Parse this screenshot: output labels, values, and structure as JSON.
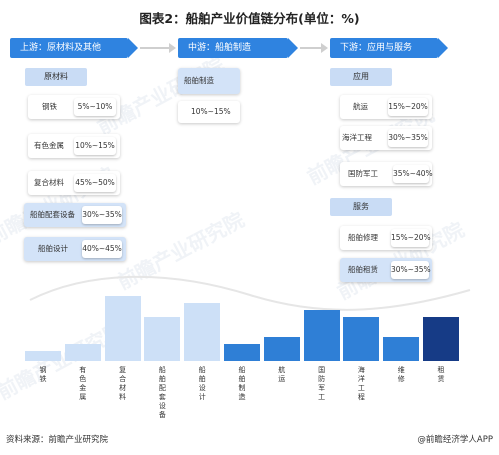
{
  "title": "图表2：船舶产业价值链分布(单位：%)",
  "stages": {
    "upstream": "上游：原材料及其他",
    "midstream": "中游：船舶制造",
    "downstream": "下游：应用与服务"
  },
  "upstream": {
    "category": "原材料",
    "items": [
      {
        "label": "钢铁",
        "pct": "5%~10%"
      },
      {
        "label": "有色金属",
        "pct": "10%~15%"
      },
      {
        "label": "复合材料",
        "pct": "45%~50%"
      },
      {
        "label": "船舶配套设备",
        "pct": "30%~35%"
      },
      {
        "label": "船舶设计",
        "pct": "40%~45%"
      }
    ]
  },
  "midstream": {
    "category": "船舶制造",
    "pct": "10%~15%"
  },
  "downstream": {
    "category1": "应用",
    "items1": [
      {
        "label": "航运",
        "pct": "15%~20%"
      },
      {
        "label": "海洋工程",
        "pct": "30%~35%"
      },
      {
        "label": "国防军工",
        "pct": "35%~40%"
      }
    ],
    "category2": "服务",
    "items2": [
      {
        "label": "船舶修理",
        "pct": "15%~20%"
      },
      {
        "label": "船舶租赁",
        "pct": "30%~35%"
      }
    ]
  },
  "chart_data": {
    "type": "bar",
    "categories": [
      "钢铁",
      "有色金属",
      "复合材料",
      "船舶配套设备",
      "船舶设计",
      "船舶制造",
      "航运",
      "国防军工",
      "海洋工程",
      "维修",
      "租赁"
    ],
    "values": [
      7.5,
      12.5,
      47.5,
      32.5,
      42.5,
      12.5,
      17.5,
      37.5,
      32.5,
      17.5,
      32.5
    ],
    "colors": [
      "#cde0f7",
      "#cde0f7",
      "#cde0f7",
      "#cde0f7",
      "#cde0f7",
      "#2f7fd6",
      "#2f7fd6",
      "#2f7fd6",
      "#2f7fd6",
      "#2f7fd6",
      "#163b86"
    ],
    "ylim": [
      0,
      50
    ]
  },
  "footer": {
    "source": "资料来源：前瞻产业研究院",
    "brand": "@前瞻经济学人APP"
  },
  "watermark": "前瞻产业研究院"
}
